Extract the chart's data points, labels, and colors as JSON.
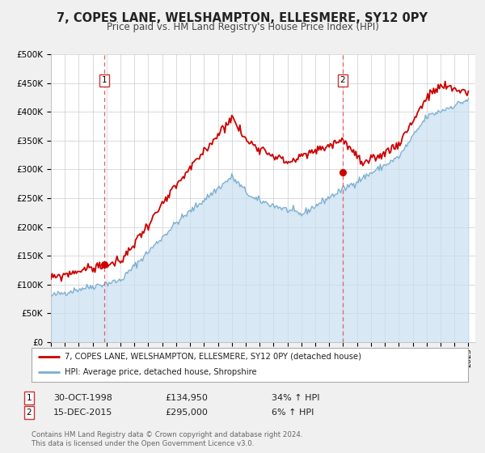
{
  "title": "7, COPES LANE, WELSHAMPTON, ELLESMERE, SY12 0PY",
  "subtitle": "Price paid vs. HM Land Registry's House Price Index (HPI)",
  "ylim": [
    0,
    500000
  ],
  "yticks": [
    0,
    50000,
    100000,
    150000,
    200000,
    250000,
    300000,
    350000,
    400000,
    450000,
    500000
  ],
  "ytick_labels": [
    "£0",
    "£50K",
    "£100K",
    "£150K",
    "£200K",
    "£250K",
    "£300K",
    "£350K",
    "£400K",
    "£450K",
    "£500K"
  ],
  "xlim_start": 1995.0,
  "xlim_end": 2025.5,
  "transaction1_x": 1998.83,
  "transaction1_y": 134950,
  "transaction1_label": "1",
  "transaction1_date": "30-OCT-1998",
  "transaction1_price": "£134,950",
  "transaction1_hpi": "34% ↑ HPI",
  "transaction2_x": 2015.96,
  "transaction2_y": 295000,
  "transaction2_label": "2",
  "transaction2_date": "15-DEC-2015",
  "transaction2_price": "£295,000",
  "transaction2_hpi": "6% ↑ HPI",
  "line1_color": "#cc0000",
  "line2_color": "#7aadcf",
  "fill_color": "#c8dff0",
  "background_color": "#f0f0f0",
  "plot_bg_color": "#ffffff",
  "grid_color": "#cccccc",
  "title_fontsize": 10.5,
  "subtitle_fontsize": 8.5,
  "legend1_text": "7, COPES LANE, WELSHAMPTON, ELLESMERE, SY12 0PY (detached house)",
  "legend2_text": "HPI: Average price, detached house, Shropshire",
  "footer_text": "Contains HM Land Registry data © Crown copyright and database right 2024.\nThis data is licensed under the Open Government Licence v3.0.",
  "marker_color": "#cc0000",
  "vline_color": "#e06060"
}
